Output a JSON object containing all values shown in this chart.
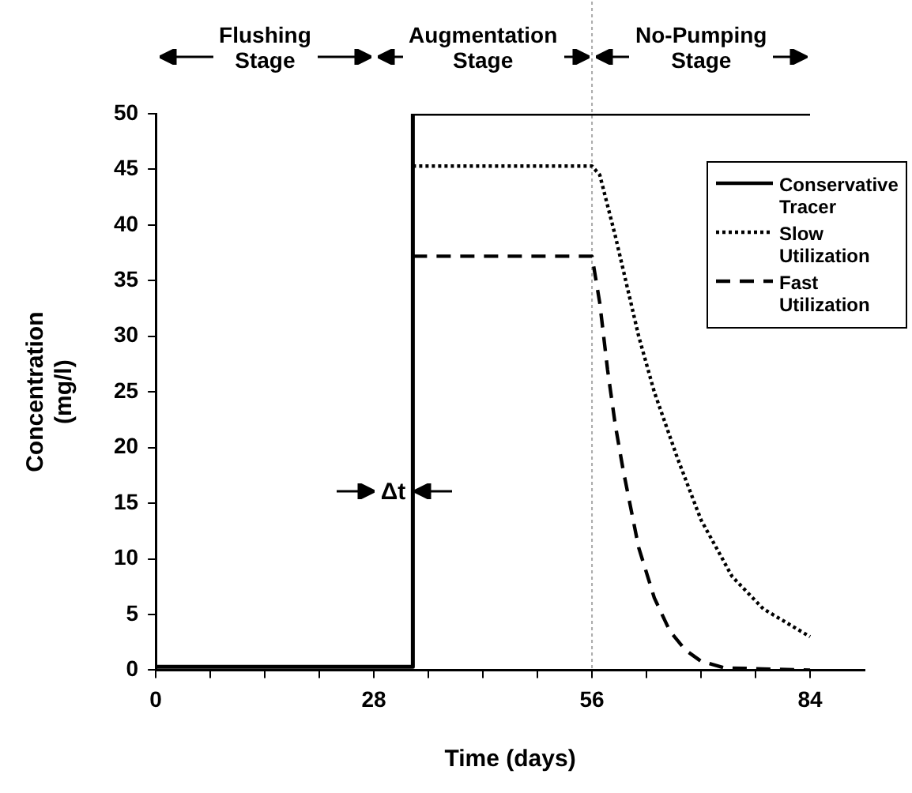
{
  "chart_data": {
    "type": "line",
    "xlabel": "Time (days)",
    "ylabel": "Concentration\n(mg/l)",
    "annotations": [
      "Flushing\nStage",
      "Augmentation\nStage",
      "No-Pumping\nStage",
      "Δt"
    ],
    "series": [
      {
        "name": "Conservative\nTracer",
        "color": "#000000",
        "line_style": "solid",
        "x": [
          0,
          33,
          33,
          84
        ],
        "values": [
          0.3,
          0.3,
          50,
          50
        ]
      },
      {
        "name": "Slow\nUtilization",
        "color": "#000000",
        "line_style": "dotted",
        "x": [
          33,
          56,
          57,
          59,
          62,
          64,
          67,
          70,
          74,
          78,
          84
        ],
        "values": [
          45.3,
          45.3,
          44.5,
          39,
          30,
          25,
          19,
          13.5,
          8.4,
          5.5,
          3
        ]
      },
      {
        "name": "Fast\nUtilization",
        "color": "#000000",
        "line_style": "dashed",
        "x": [
          33,
          56,
          57,
          58,
          59,
          60,
          61,
          62,
          64,
          66,
          68,
          70,
          73,
          84
        ],
        "values": [
          37.2,
          37.2,
          33,
          27,
          22,
          18,
          14.5,
          11,
          6.5,
          3.5,
          1.8,
          0.8,
          0.2,
          0
        ]
      }
    ],
    "ref_lines": [
      {
        "axis": "x",
        "value": 56,
        "color": "#aaaaaa",
        "line_style": "dotted"
      }
    ],
    "xlim": [
      0,
      91
    ],
    "xticks": [
      0,
      {
        "value": 7,
        "label": null
      },
      {
        "value": 14,
        "label": null
      },
      {
        "value": 21,
        "label": null
      },
      28,
      {
        "value": 35,
        "label": null
      },
      {
        "value": 42,
        "label": null
      },
      {
        "value": 49,
        "label": null
      },
      56,
      {
        "value": 63,
        "label": null
      },
      {
        "value": 70,
        "label": null
      },
      {
        "value": 77,
        "label": null
      },
      84
    ],
    "ylim": [
      0,
      50
    ],
    "yticks": [
      0,
      5,
      10,
      15,
      20,
      25,
      30,
      35,
      40,
      45,
      50
    ],
    "grid": false,
    "legend": "top right",
    "marker": "none"
  }
}
